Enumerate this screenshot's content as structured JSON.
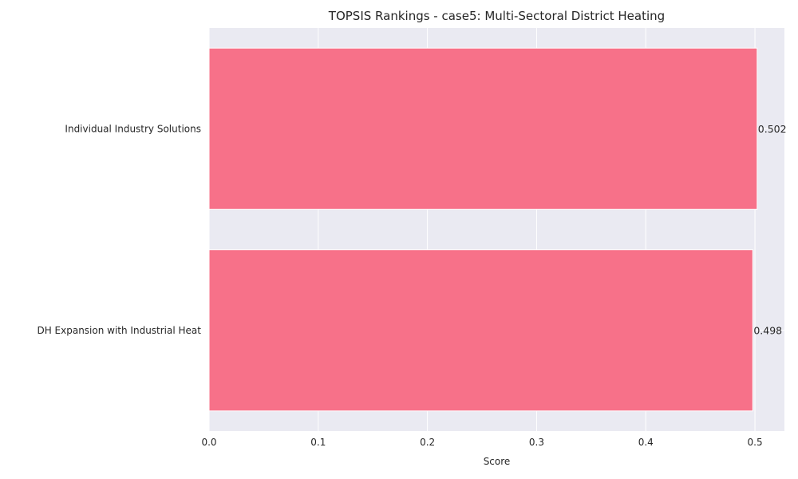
{
  "chart_data": {
    "type": "bar",
    "orientation": "horizontal",
    "title": "TOPSIS Rankings - case5: Multi-Sectoral District Heating",
    "xlabel": "Score",
    "ylabel": "",
    "categories": [
      "Individual Industry Solutions",
      "DH Expansion with Industrial Heat"
    ],
    "values": [
      0.502,
      0.498
    ],
    "data_labels": [
      "0.502",
      "0.498"
    ],
    "xlim": [
      0,
      0.527
    ],
    "xticks": [
      0.0,
      0.1,
      0.2,
      0.3,
      0.4,
      0.5
    ],
    "xtick_labels": [
      "0.0",
      "0.1",
      "0.2",
      "0.3",
      "0.4",
      "0.5"
    ],
    "grid": true,
    "bar_color": "#f77189",
    "plot_background": "#eaeaf2",
    "grid_color": "#ffffff"
  }
}
